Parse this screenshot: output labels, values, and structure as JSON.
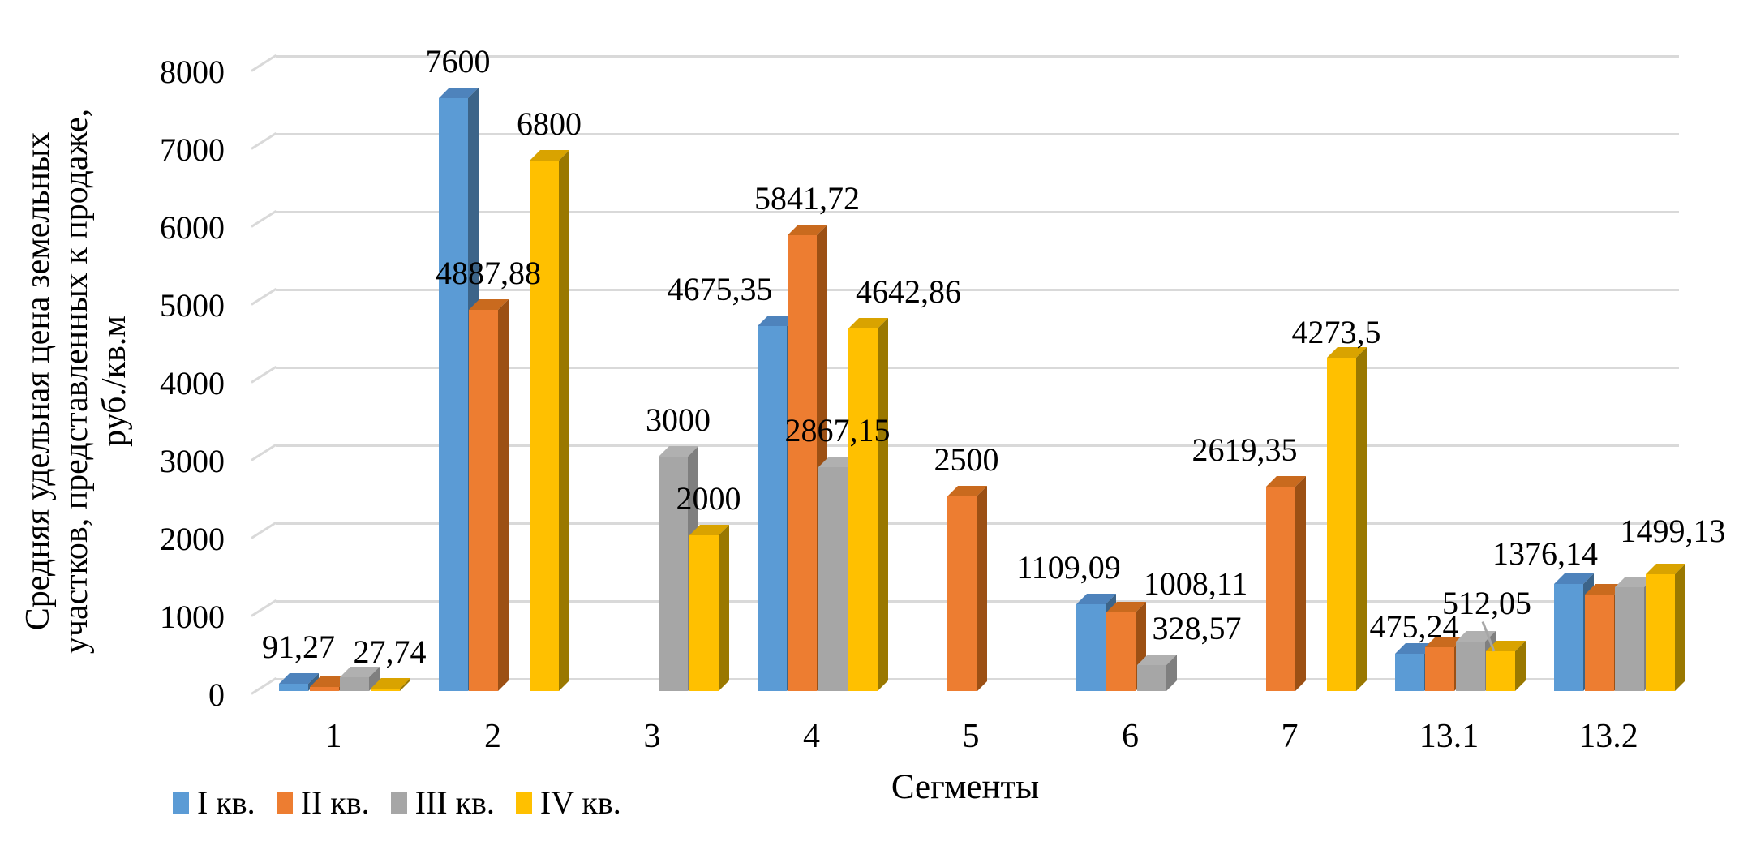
{
  "chart_data": {
    "type": "bar",
    "style": "3d-clustered-column",
    "title": "",
    "xlabel": "Сегменты",
    "ylabel": "Средняя удельная цена земельных участков, представленных к продаже, руб./кв.м",
    "ylabel_lines": [
      "Средняя удельная цена земельных",
      "участков, представленных к продаже,",
      "руб./кв.м"
    ],
    "ylim": [
      0,
      8000
    ],
    "yticks": [
      0,
      1000,
      2000,
      3000,
      4000,
      5000,
      6000,
      7000,
      8000
    ],
    "grid": true,
    "gridline_color": "#D9D9D9",
    "legend_position": "bottom-left",
    "categories": [
      "1",
      "2",
      "3",
      "4",
      "5",
      "6",
      "7",
      "13.1",
      "13.2"
    ],
    "series": [
      {
        "name": "I кв.",
        "colors": {
          "front": "#5B9BD5",
          "top": "#4E83BC",
          "side": "#3C6489"
        },
        "values": [
          91.27,
          7600,
          null,
          4675.35,
          null,
          1109.09,
          null,
          475.24,
          1376.14
        ],
        "labels": [
          "91,27",
          "7600",
          null,
          "4675,35",
          null,
          "1109,09",
          null,
          "475,24",
          "1376,14"
        ]
      },
      {
        "name": "II кв.",
        "colors": {
          "front": "#ED7D31",
          "top": "#C96A1E",
          "side": "#9C5014"
        },
        "values": [
          55,
          4887.88,
          null,
          5841.72,
          2500,
          1008.11,
          2619.35,
          560,
          1240
        ],
        "labels": [
          null,
          "4887,88",
          null,
          "5841,72",
          "2500",
          "1008,11",
          "2619,35",
          null,
          null
        ]
      },
      {
        "name": "III кв.",
        "colors": {
          "front": "#A6A6A6",
          "top": "#B0B0B0",
          "side": "#7F7F7F"
        },
        "values": [
          180,
          null,
          3000,
          2867.15,
          null,
          328.57,
          null,
          630,
          1330
        ],
        "labels": [
          null,
          null,
          "3000",
          "2867,15",
          null,
          "328,57",
          null,
          null,
          null
        ]
      },
      {
        "name": "IV кв.",
        "colors": {
          "front": "#FFC000",
          "top": "#D9A300",
          "side": "#9A7800"
        },
        "values": [
          27.74,
          6800,
          2000,
          4642.86,
          null,
          null,
          4273.5,
          512.05,
          1499.13
        ],
        "labels": [
          "27,74",
          "6800",
          "2000",
          "4642,86",
          null,
          null,
          "4273,5",
          "512,05",
          "1499,13"
        ]
      }
    ]
  }
}
